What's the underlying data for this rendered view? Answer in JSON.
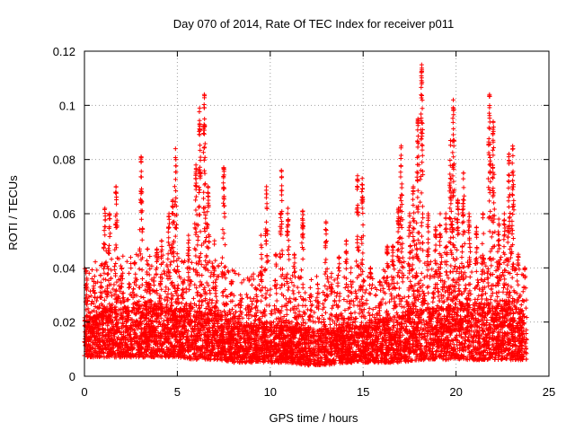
{
  "chart_data": {
    "type": "scatter",
    "title": "Day 070 of 2014, Rate Of TEC Index for receiver p011",
    "xlabel": "GPS time / hours",
    "ylabel": "ROTI / TECUs",
    "xlim": [
      0,
      25
    ],
    "ylim": [
      0,
      0.12
    ],
    "x_ticks": [
      0,
      5,
      10,
      15,
      20,
      25
    ],
    "x_tick_labels": [
      "0",
      "5",
      "10",
      "15",
      "20",
      "25"
    ],
    "y_ticks": [
      0,
      0.02,
      0.04,
      0.06,
      0.08,
      0.1,
      0.12
    ],
    "y_tick_labels": [
      "0",
      "0.02",
      "0.04",
      "0.06",
      "0.08",
      "0.1",
      "0.12"
    ],
    "grid": true,
    "marker": "+",
    "marker_color": "#ff0000",
    "x_extent": [
      0,
      23.8
    ],
    "series": [
      {
        "name": "ROTI",
        "baseline_envelope": {
          "x": [
            0,
            1,
            2,
            3,
            4,
            5,
            6,
            7,
            8,
            9,
            10,
            11,
            12,
            13,
            14,
            15,
            16,
            17,
            18,
            19,
            20,
            21,
            22,
            23,
            23.8
          ],
          "y_low": [
            0.007,
            0.007,
            0.007,
            0.007,
            0.007,
            0.007,
            0.006,
            0.006,
            0.005,
            0.005,
            0.005,
            0.005,
            0.004,
            0.004,
            0.005,
            0.005,
            0.005,
            0.005,
            0.006,
            0.006,
            0.006,
            0.006,
            0.006,
            0.006,
            0.006
          ],
          "y_high": [
            0.02,
            0.024,
            0.025,
            0.025,
            0.025,
            0.024,
            0.024,
            0.023,
            0.02,
            0.018,
            0.018,
            0.018,
            0.017,
            0.017,
            0.017,
            0.018,
            0.02,
            0.022,
            0.024,
            0.025,
            0.025,
            0.025,
            0.025,
            0.025,
            0.024
          ]
        },
        "peaks": [
          {
            "x": 0.1,
            "y": 0.039
          },
          {
            "x": 0.5,
            "y": 0.035
          },
          {
            "x": 0.9,
            "y": 0.041
          },
          {
            "x": 1.1,
            "y": 0.062
          },
          {
            "x": 1.35,
            "y": 0.06
          },
          {
            "x": 1.7,
            "y": 0.07
          },
          {
            "x": 2.0,
            "y": 0.04
          },
          {
            "x": 2.4,
            "y": 0.038
          },
          {
            "x": 2.7,
            "y": 0.042
          },
          {
            "x": 3.05,
            "y": 0.081
          },
          {
            "x": 3.4,
            "y": 0.047
          },
          {
            "x": 3.9,
            "y": 0.047
          },
          {
            "x": 4.15,
            "y": 0.05
          },
          {
            "x": 4.55,
            "y": 0.06
          },
          {
            "x": 4.75,
            "y": 0.065
          },
          {
            "x": 4.9,
            "y": 0.084
          },
          {
            "x": 5.3,
            "y": 0.035
          },
          {
            "x": 5.6,
            "y": 0.052
          },
          {
            "x": 6.0,
            "y": 0.078
          },
          {
            "x": 6.2,
            "y": 0.099
          },
          {
            "x": 6.45,
            "y": 0.104
          },
          {
            "x": 6.65,
            "y": 0.07
          },
          {
            "x": 7.0,
            "y": 0.05
          },
          {
            "x": 7.5,
            "y": 0.077
          },
          {
            "x": 7.9,
            "y": 0.035
          },
          {
            "x": 8.4,
            "y": 0.03
          },
          {
            "x": 8.8,
            "y": 0.026
          },
          {
            "x": 9.25,
            "y": 0.032
          },
          {
            "x": 9.5,
            "y": 0.052
          },
          {
            "x": 9.8,
            "y": 0.07
          },
          {
            "x": 10.3,
            "y": 0.045
          },
          {
            "x": 10.6,
            "y": 0.076
          },
          {
            "x": 10.95,
            "y": 0.062
          },
          {
            "x": 11.3,
            "y": 0.045
          },
          {
            "x": 11.75,
            "y": 0.061
          },
          {
            "x": 12.2,
            "y": 0.03
          },
          {
            "x": 12.55,
            "y": 0.034
          },
          {
            "x": 13.0,
            "y": 0.057
          },
          {
            "x": 13.3,
            "y": 0.038
          },
          {
            "x": 13.7,
            "y": 0.044
          },
          {
            "x": 14.1,
            "y": 0.05
          },
          {
            "x": 14.35,
            "y": 0.04
          },
          {
            "x": 14.7,
            "y": 0.074
          },
          {
            "x": 14.95,
            "y": 0.073
          },
          {
            "x": 15.4,
            "y": 0.04
          },
          {
            "x": 15.9,
            "y": 0.035
          },
          {
            "x": 16.3,
            "y": 0.048
          },
          {
            "x": 16.6,
            "y": 0.048
          },
          {
            "x": 16.9,
            "y": 0.062
          },
          {
            "x": 17.05,
            "y": 0.085
          },
          {
            "x": 17.5,
            "y": 0.06
          },
          {
            "x": 17.7,
            "y": 0.07
          },
          {
            "x": 17.95,
            "y": 0.095
          },
          {
            "x": 18.15,
            "y": 0.115
          },
          {
            "x": 18.5,
            "y": 0.06
          },
          {
            "x": 18.9,
            "y": 0.055
          },
          {
            "x": 19.15,
            "y": 0.06
          },
          {
            "x": 19.45,
            "y": 0.06
          },
          {
            "x": 19.7,
            "y": 0.087
          },
          {
            "x": 19.85,
            "y": 0.102
          },
          {
            "x": 20.1,
            "y": 0.065
          },
          {
            "x": 20.4,
            "y": 0.075
          },
          {
            "x": 20.7,
            "y": 0.06
          },
          {
            "x": 21.1,
            "y": 0.055
          },
          {
            "x": 21.45,
            "y": 0.06
          },
          {
            "x": 21.8,
            "y": 0.104
          },
          {
            "x": 22.0,
            "y": 0.094
          },
          {
            "x": 22.3,
            "y": 0.058
          },
          {
            "x": 22.6,
            "y": 0.06
          },
          {
            "x": 22.85,
            "y": 0.082
          },
          {
            "x": 23.05,
            "y": 0.085
          },
          {
            "x": 23.35,
            "y": 0.045
          },
          {
            "x": 23.7,
            "y": 0.04
          }
        ]
      }
    ]
  }
}
